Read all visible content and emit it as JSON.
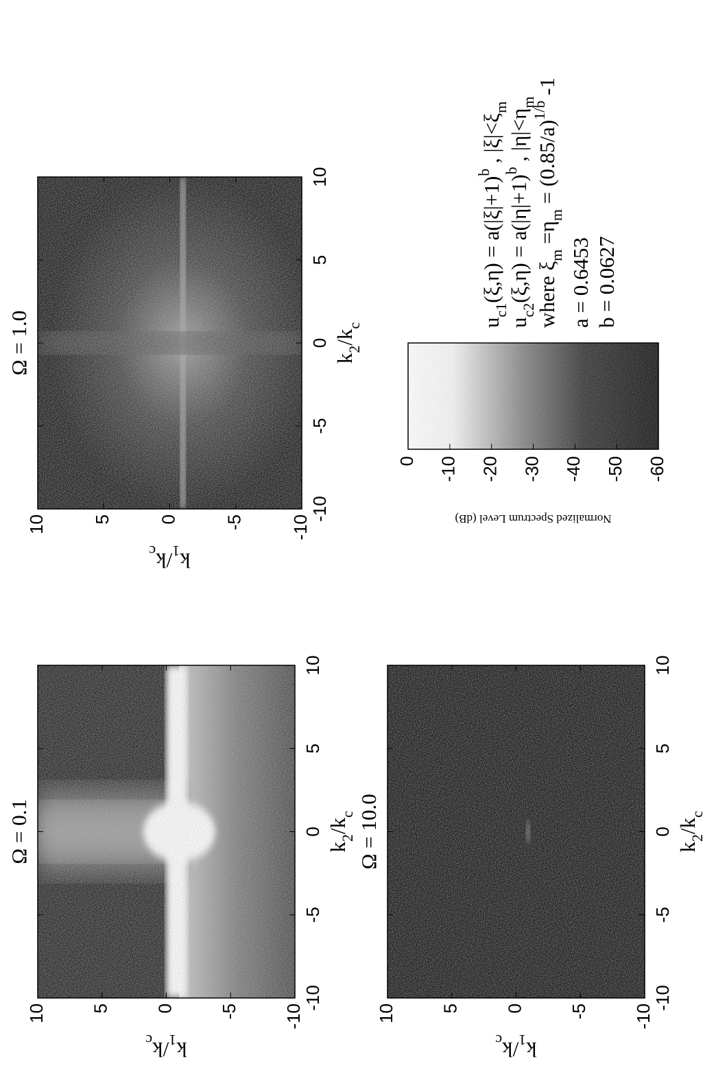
{
  "chart_data": [
    {
      "type": "heatmap",
      "title": "Ω = 0.1",
      "xlabel": [
        {
          "text": "k"
        },
        {
          "text": "2",
          "sub": true
        },
        {
          "text": "/k"
        },
        {
          "text": "c",
          "sub": true
        }
      ],
      "ylabel": [
        {
          "text": "k"
        },
        {
          "text": "1",
          "sub": true
        },
        {
          "text": "/k"
        },
        {
          "text": "c",
          "sub": true
        }
      ],
      "xlim": [
        -10,
        10
      ],
      "ylim": [
        -10,
        10
      ],
      "xticks": [
        -10,
        -5,
        0,
        5,
        10
      ],
      "yticks": [
        -10,
        -5,
        0,
        5,
        10
      ]
    },
    {
      "type": "heatmap",
      "title": "Ω = 1.0",
      "xlabel": [
        {
          "text": "k"
        },
        {
          "text": "2",
          "sub": true
        },
        {
          "text": "/k"
        },
        {
          "text": "c",
          "sub": true
        }
      ],
      "ylabel": [
        {
          "text": "k"
        },
        {
          "text": "1",
          "sub": true
        },
        {
          "text": "/k"
        },
        {
          "text": "c",
          "sub": true
        }
      ],
      "xlim": [
        -10,
        10
      ],
      "ylim": [
        -10,
        10
      ],
      "xticks": [
        -10,
        -5,
        0,
        5,
        10
      ],
      "yticks": [
        -10,
        -5,
        0,
        5,
        10
      ]
    },
    {
      "type": "heatmap",
      "title": "Ω = 10.0",
      "xlabel": [
        {
          "text": "k"
        },
        {
          "text": "2",
          "sub": true
        },
        {
          "text": "/k"
        },
        {
          "text": "c",
          "sub": true
        }
      ],
      "ylabel": [
        {
          "text": "k"
        },
        {
          "text": "1",
          "sub": true
        },
        {
          "text": "/k"
        },
        {
          "text": "c",
          "sub": true
        }
      ],
      "xlim": [
        -10,
        10
      ],
      "ylim": [
        -10,
        10
      ],
      "xticks": [
        -10,
        -5,
        0,
        5,
        10
      ],
      "yticks": [
        -10,
        -5,
        0,
        5,
        10
      ]
    }
  ],
  "colorbar": {
    "label": "Normalized Spectrum Level (dB)",
    "lim": [
      -60,
      0
    ],
    "ticks": [
      0,
      -10,
      -20,
      -30,
      -40,
      -50,
      -60
    ]
  },
  "annotation_lines": [
    [
      {
        "text": "u"
      },
      {
        "text": "c1",
        "sub": true
      },
      {
        "text": "(ξ,η) = a(|ξ|+1)"
      },
      {
        "text": "b",
        "sup": true
      },
      {
        "text": " , |ξ|<ξ"
      },
      {
        "text": "m",
        "sub": true
      }
    ],
    [
      {
        "text": "u"
      },
      {
        "text": "c2",
        "sub": true
      },
      {
        "text": "(ξ,η) = a(|η|+1)"
      },
      {
        "text": "b",
        "sup": true
      },
      {
        "text": " , |η|<η"
      },
      {
        "text": "m",
        "sub": true
      }
    ],
    [
      {
        "text": "where ξ"
      },
      {
        "text": "m",
        "sub": true
      },
      {
        "text": " =η"
      },
      {
        "text": "m",
        "sub": true
      },
      {
        "text": " = (0.85/a)"
      },
      {
        "text": "1/b",
        "sup": true
      },
      {
        "text": " -1"
      }
    ],
    [
      {
        "text": "a = 0.6453"
      }
    ],
    [
      {
        "text": "b = 0.0627"
      }
    ]
  ]
}
